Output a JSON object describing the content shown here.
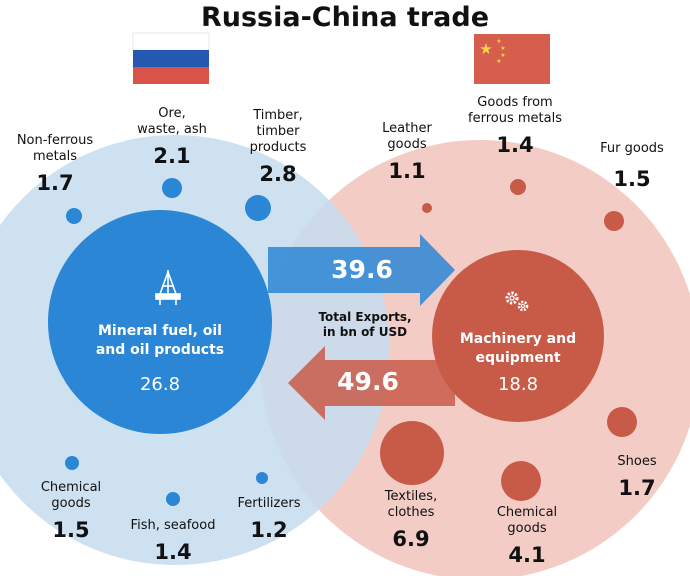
{
  "title": "Russia-China trade",
  "total_exports_label": "Total Exports,\nin bn of USD",
  "flags": {
    "russia": "russia-flag",
    "china": "china-flag"
  },
  "colors": {
    "russia_zone": "#c5dcef",
    "russia_dot": "#2b86d6",
    "china_zone": "#f2c6bf",
    "china_dot": "#c85a48"
  },
  "russia": {
    "hub": {
      "label": "Mineral fuel, oil\nand oil products",
      "value": "26.8",
      "icon": "oil-rig-icon"
    },
    "export_total": "39.6",
    "categories": [
      {
        "label": "Non-ferrous\nmetals",
        "value": "1.7"
      },
      {
        "label": "Ore,\nwaste, ash",
        "value": "2.1"
      },
      {
        "label": "Timber,\ntimber\nproducts",
        "value": "2.8"
      },
      {
        "label": "Chemical\ngoods",
        "value": "1.5"
      },
      {
        "label": "Fish, seafood",
        "value": "1.4"
      },
      {
        "label": "Fertilizers",
        "value": "1.2"
      }
    ]
  },
  "china": {
    "hub": {
      "label": "Machinery and\nequipment",
      "value": "18.8",
      "icon": "gears-icon"
    },
    "export_total": "49.6",
    "categories": [
      {
        "label": "Leather\ngoods",
        "value": "1.1"
      },
      {
        "label": "Goods from\nferrous metals",
        "value": "1.4"
      },
      {
        "label": "Fur goods",
        "value": "1.5"
      },
      {
        "label": "Textiles,\nclothes",
        "value": "6.9"
      },
      {
        "label": "Chemical\ngoods",
        "value": "4.1"
      },
      {
        "label": "Shoes",
        "value": "1.7"
      }
    ]
  }
}
